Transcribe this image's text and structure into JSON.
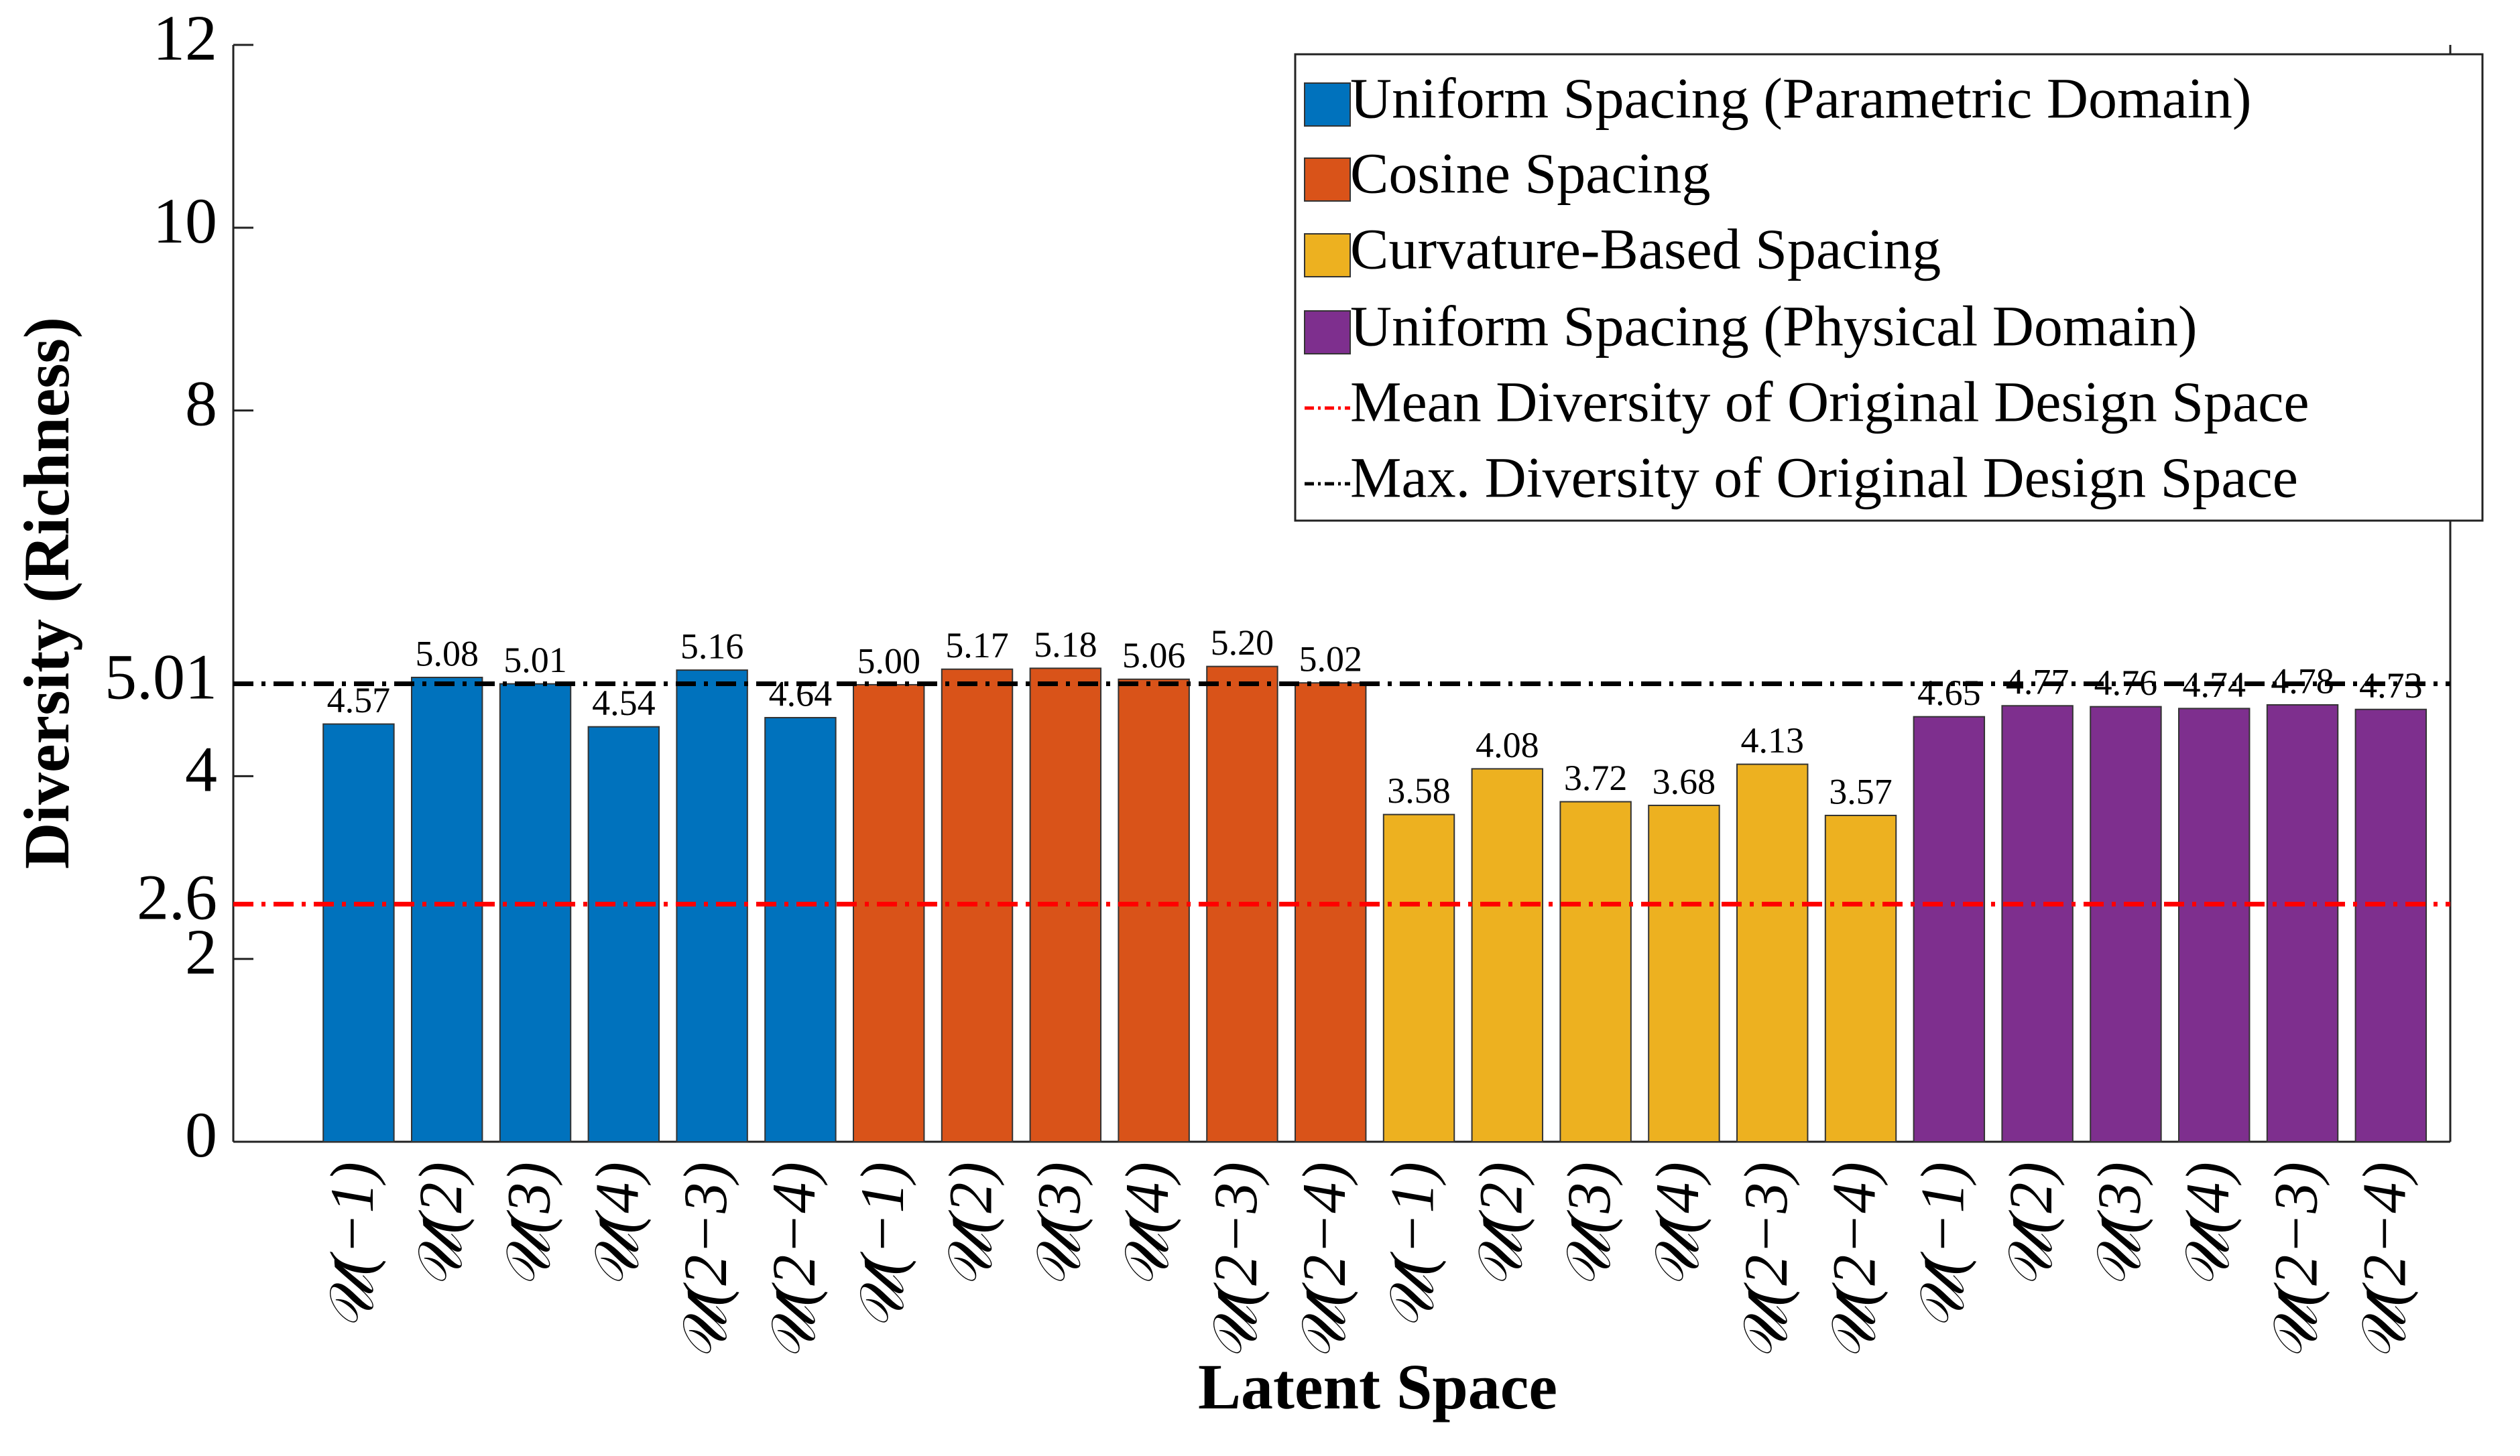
{
  "chart_data": {
    "type": "bar",
    "ylabel": "Diversity (Richness)",
    "xlabel": "Latent Space",
    "ylim": [
      0,
      12
    ],
    "yticks": [
      0,
      2,
      2.6,
      4,
      5.01,
      8,
      10,
      12
    ],
    "series": [
      {
        "name": "Uniform Spacing (Parametric Domain)",
        "color": "#0072BD",
        "categories": [
          "𝒰(−1)",
          "𝒰(2)",
          "𝒰(3)",
          "𝒰(4)",
          "𝒰(2−3)",
          "𝒰(2−4)"
        ],
        "values": [
          4.57,
          5.08,
          5.01,
          4.54,
          5.16,
          4.64
        ],
        "value_labels": [
          "4.57",
          "5.08",
          "5.01",
          "4.54",
          "5.16",
          "4.64"
        ]
      },
      {
        "name": "Cosine Spacing",
        "color": "#D95319",
        "categories": [
          "𝒰(−1)",
          "𝒰(2)",
          "𝒰(3)",
          "𝒰(4)",
          "𝒰(2−3)",
          "𝒰(2−4)"
        ],
        "values": [
          5.0,
          5.17,
          5.18,
          5.06,
          5.2,
          5.02
        ],
        "value_labels": [
          "5.00",
          "5.17",
          "5.18",
          "5.06",
          "5.20",
          "5.02"
        ]
      },
      {
        "name": "Curvature-Based Spacing",
        "color": "#EDB120",
        "categories": [
          "𝒰(−1)",
          "𝒰(2)",
          "𝒰(3)",
          "𝒰(4)",
          "𝒰(2−3)",
          "𝒰(2−4)"
        ],
        "values": [
          3.58,
          4.08,
          3.72,
          3.68,
          4.13,
          3.57
        ],
        "value_labels": [
          "3.58",
          "4.08",
          "3.72",
          "3.68",
          "4.13",
          "3.57"
        ]
      },
      {
        "name": "Uniform Spacing (Physical Domain)",
        "color": "#7E2F8E",
        "categories": [
          "𝒰(−1)",
          "𝒰(2)",
          "𝒰(3)",
          "𝒰(4)",
          "𝒰(2−3)",
          "𝒰(2−4)"
        ],
        "values": [
          4.65,
          4.77,
          4.76,
          4.74,
          4.78,
          4.73
        ],
        "value_labels": [
          "4.65",
          "4.77",
          "4.76",
          "4.74",
          "4.78",
          "4.73"
        ]
      }
    ],
    "reference_lines": [
      {
        "name": "Mean Diversity of Original Design Space",
        "value": 2.6,
        "color": "#FF0000"
      },
      {
        "name": "Max. Diversity of Original Design Space",
        "value": 5.01,
        "color": "#000000"
      }
    ],
    "legend": "upper right"
  }
}
